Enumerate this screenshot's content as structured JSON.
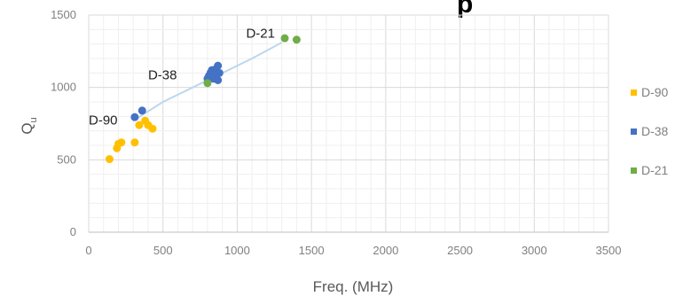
{
  "chart_data": {
    "type": "scatter",
    "title_fragment": "p",
    "xlabel": "Freq. (MHz)",
    "ylabel": "Q",
    "ylabel_sub": "u",
    "xlim": [
      0,
      3500
    ],
    "ylim": [
      0,
      1500
    ],
    "xticks": [
      "0",
      "500",
      "1000",
      "1500",
      "2000",
      "2500",
      "3000",
      "3500"
    ],
    "yticks": [
      "0",
      "500",
      "1000",
      "1500"
    ],
    "grid": true,
    "legend_position": "right",
    "series": [
      {
        "name": "D-90",
        "color": "#FFC000",
        "x": [
          140,
          190,
          200,
          220,
          310,
          340,
          380,
          400,
          430
        ],
        "y": [
          505,
          580,
          610,
          620,
          620,
          740,
          770,
          740,
          715
        ]
      },
      {
        "name": "D-38",
        "color": "#4472C4",
        "x": [
          310,
          360,
          800,
          810,
          820,
          830,
          840,
          850,
          860,
          870,
          880,
          870,
          840
        ],
        "y": [
          795,
          840,
          1060,
          1080,
          1100,
          1120,
          1060,
          1090,
          1130,
          1150,
          1100,
          1050,
          1070
        ]
      },
      {
        "name": "D-21",
        "color": "#70AD47",
        "x": [
          800,
          1320,
          1400
        ],
        "y": [
          1030,
          1340,
          1330
        ]
      }
    ],
    "trendline": {
      "color": "#BDD7EE",
      "x": [
        300,
        500,
        700,
        900,
        1100,
        1300
      ],
      "y": [
        770,
        900,
        1000,
        1100,
        1200,
        1310
      ]
    },
    "annotations": [
      {
        "text": "D-21",
        "x": 1060,
        "y": 1345
      },
      {
        "text": "D-38",
        "x": 400,
        "y": 1055
      },
      {
        "text": "D-90",
        "x": 0,
        "y": 745
      }
    ]
  }
}
